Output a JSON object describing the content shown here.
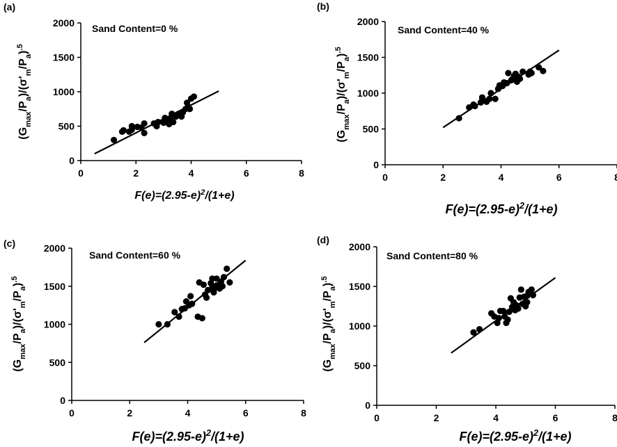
{
  "chart_data": [
    {
      "type": "scatter",
      "panel_label": "(a)",
      "annotation": "Sand Content=0 %",
      "xlabel": "F(e)=(2.95-e)²/(1+e)",
      "ylabel": "(Gmax/Pa)/(σ'm/Pa).5",
      "xlim": [
        0,
        8
      ],
      "ylim": [
        0,
        2000
      ],
      "xticks": [
        "0",
        "2",
        "4",
        "6",
        "8"
      ],
      "yticks": [
        "0",
        "500",
        "1000",
        "1500",
        "2000"
      ],
      "points": [
        [
          1.2,
          300
        ],
        [
          1.5,
          420
        ],
        [
          1.55,
          440
        ],
        [
          1.75,
          420
        ],
        [
          1.85,
          450
        ],
        [
          1.85,
          500
        ],
        [
          2.05,
          490
        ],
        [
          2.2,
          480
        ],
        [
          2.3,
          540
        ],
        [
          2.3,
          400
        ],
        [
          2.65,
          540
        ],
        [
          2.75,
          500
        ],
        [
          2.8,
          560
        ],
        [
          3.0,
          550
        ],
        [
          3.05,
          620
        ],
        [
          3.1,
          580
        ],
        [
          3.2,
          530
        ],
        [
          3.25,
          600
        ],
        [
          3.3,
          680
        ],
        [
          3.35,
          560
        ],
        [
          3.45,
          640
        ],
        [
          3.55,
          680
        ],
        [
          3.65,
          640
        ],
        [
          3.7,
          700
        ],
        [
          3.8,
          750
        ],
        [
          3.85,
          840
        ],
        [
          3.95,
          750
        ],
        [
          4.0,
          900
        ],
        [
          4.1,
          930
        ],
        [
          3.9,
          780
        ]
      ],
      "fit_line": {
        "x": [
          0.5,
          5.0
        ],
        "y": [
          100,
          1010
        ]
      }
    },
    {
      "type": "scatter",
      "panel_label": "(b)",
      "annotation": "Sand Content=40 %",
      "xlabel": "F(e)=(2.95-e)²/(1+e)",
      "ylabel": "(Gmax/Pa)/(σ'm/Pa).5",
      "xlim": [
        0,
        8
      ],
      "ylim": [
        0,
        2000
      ],
      "xticks": [
        "0",
        "2",
        "4",
        "6",
        "8"
      ],
      "yticks": [
        "0",
        "500",
        "1000",
        "1500",
        "2000"
      ],
      "points": [
        [
          2.55,
          650
        ],
        [
          2.9,
          800
        ],
        [
          3.05,
          840
        ],
        [
          3.1,
          820
        ],
        [
          3.3,
          870
        ],
        [
          3.35,
          900
        ],
        [
          3.35,
          940
        ],
        [
          3.5,
          880
        ],
        [
          3.6,
          920
        ],
        [
          3.65,
          1000
        ],
        [
          3.8,
          920
        ],
        [
          3.9,
          1060
        ],
        [
          3.95,
          1110
        ],
        [
          4.05,
          1100
        ],
        [
          4.1,
          1150
        ],
        [
          4.2,
          1140
        ],
        [
          4.25,
          1280
        ],
        [
          4.35,
          1180
        ],
        [
          4.4,
          1200
        ],
        [
          4.45,
          1240
        ],
        [
          4.5,
          1270
        ],
        [
          4.55,
          1160
        ],
        [
          4.6,
          1230
        ],
        [
          4.65,
          1200
        ],
        [
          4.75,
          1300
        ],
        [
          4.95,
          1260
        ],
        [
          5.0,
          1300
        ],
        [
          5.05,
          1280
        ],
        [
          5.3,
          1360
        ],
        [
          5.45,
          1310
        ]
      ],
      "fit_line": {
        "x": [
          2.0,
          6.0
        ],
        "y": [
          520,
          1600
        ]
      }
    },
    {
      "type": "scatter",
      "panel_label": "(c)",
      "annotation": "Sand Content=60 %",
      "xlabel": "F(e)=(2.95-e)²/(1+e)",
      "ylabel": "(Gmax/Pa)/(σ'm/Pa).5",
      "xlim": [
        0,
        8
      ],
      "ylim": [
        0,
        2000
      ],
      "xticks": [
        "0",
        "2",
        "4",
        "6",
        "8"
      ],
      "yticks": [
        "0",
        "500",
        "1000",
        "1500",
        "2000"
      ],
      "points": [
        [
          3.0,
          1000
        ],
        [
          3.3,
          1000
        ],
        [
          3.55,
          1160
        ],
        [
          3.7,
          1100
        ],
        [
          3.8,
          1200
        ],
        [
          3.9,
          1210
        ],
        [
          3.95,
          1300
        ],
        [
          4.05,
          1250
        ],
        [
          4.1,
          1370
        ],
        [
          4.15,
          1270
        ],
        [
          4.35,
          1100
        ],
        [
          4.4,
          1550
        ],
        [
          4.5,
          1080
        ],
        [
          4.6,
          1390
        ],
        [
          4.65,
          1350
        ],
        [
          4.7,
          1450
        ],
        [
          4.8,
          1540
        ],
        [
          4.85,
          1600
        ],
        [
          4.9,
          1420
        ],
        [
          4.95,
          1480
        ],
        [
          5.0,
          1510
        ],
        [
          5.0,
          1600
        ],
        [
          5.1,
          1470
        ],
        [
          5.15,
          1560
        ],
        [
          5.2,
          1500
        ],
        [
          5.25,
          1620
        ],
        [
          5.35,
          1730
        ],
        [
          5.45,
          1550
        ],
        [
          4.55,
          1520
        ],
        [
          4.85,
          1480
        ]
      ],
      "fit_line": {
        "x": [
          2.5,
          6.0
        ],
        "y": [
          760,
          1840
        ]
      }
    },
    {
      "type": "scatter",
      "panel_label": "(d)",
      "annotation": "Sand Content=80 %",
      "xlabel": "F(e)=(2.95-e)²/(1+e)",
      "ylabel": "(Gmax/Pa)/(σ'm/Pa).5",
      "xlim": [
        0,
        8
      ],
      "ylim": [
        0,
        2000
      ],
      "xticks": [
        "0",
        "2",
        "4",
        "6",
        "8"
      ],
      "yticks": [
        "0",
        "500",
        "1000",
        "1500",
        "2000"
      ],
      "points": [
        [
          3.25,
          920
        ],
        [
          3.45,
          960
        ],
        [
          3.85,
          1160
        ],
        [
          3.95,
          1120
        ],
        [
          4.05,
          1040
        ],
        [
          4.1,
          1100
        ],
        [
          4.15,
          1190
        ],
        [
          4.25,
          1190
        ],
        [
          4.3,
          1120
        ],
        [
          4.35,
          1040
        ],
        [
          4.4,
          1080
        ],
        [
          4.45,
          1180
        ],
        [
          4.5,
          1350
        ],
        [
          4.6,
          1300
        ],
        [
          4.65,
          1200
        ],
        [
          4.7,
          1260
        ],
        [
          4.75,
          1220
        ],
        [
          4.8,
          1360
        ],
        [
          4.85,
          1460
        ],
        [
          4.9,
          1280
        ],
        [
          4.95,
          1370
        ],
        [
          5.0,
          1250
        ],
        [
          5.05,
          1300
        ],
        [
          5.05,
          1380
        ],
        [
          5.1,
          1430
        ],
        [
          5.2,
          1460
        ],
        [
          5.25,
          1390
        ],
        [
          4.55,
          1240
        ]
      ],
      "fit_line": {
        "x": [
          2.5,
          6.0
        ],
        "y": [
          660,
          1610
        ]
      }
    }
  ]
}
